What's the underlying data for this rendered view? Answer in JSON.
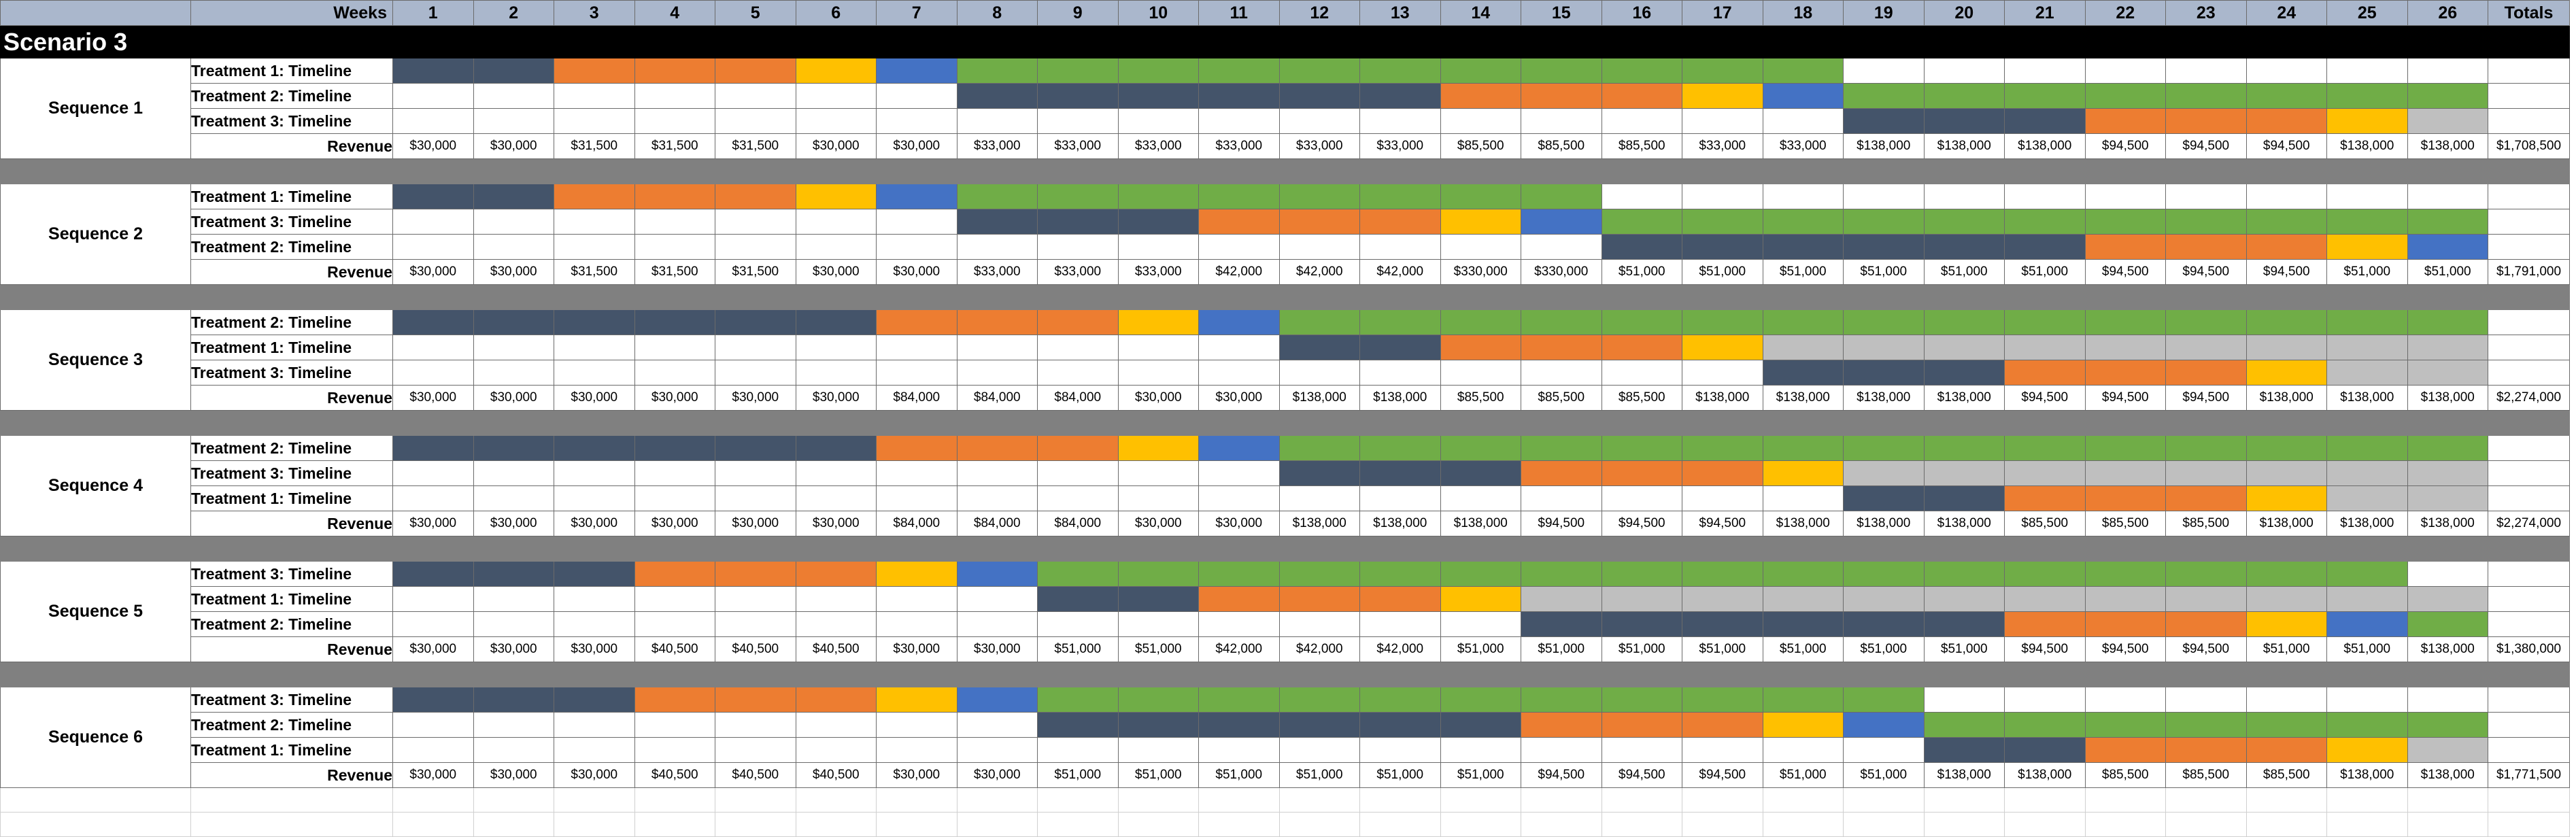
{
  "colors": {
    "N": "#44546a",
    "O": "#ed7d31",
    "Y": "#ffc000",
    "B": "#4472c4",
    "G": "#70ad47",
    "S": "#bfbfbf",
    "W": "#ffffff",
    "header_bg": "#aab7cc",
    "separator": "#808080"
  },
  "header": {
    "weeks_label": "Weeks",
    "weeks": [
      "1",
      "2",
      "3",
      "4",
      "5",
      "6",
      "7",
      "8",
      "9",
      "10",
      "11",
      "12",
      "13",
      "14",
      "15",
      "16",
      "17",
      "18",
      "19",
      "20",
      "21",
      "22",
      "23",
      "24",
      "25",
      "26"
    ],
    "totals_label": "Totals"
  },
  "scenario_title": "Scenario 3",
  "sequences": [
    {
      "label": "Sequence 1",
      "timelines": [
        {
          "label": "Treatment 1: Timeline",
          "cells": "NNOOOYBGGGGGGGGGGGWWWWWWWW"
        },
        {
          "label": "Treatment 2: Timeline",
          "cells": "WWWWWWWNNNNNNOOOYBGGGGGGGG"
        },
        {
          "label": "Treatment 3: Timeline",
          "cells": "WWWWWWWWWWWWWWWWWWNNNOOOYS"
        }
      ],
      "revenue_label": "Revenue",
      "revenue": [
        "$30,000",
        "$30,000",
        "$31,500",
        "$31,500",
        "$31,500",
        "$30,000",
        "$30,000",
        "$33,000",
        "$33,000",
        "$33,000",
        "$33,000",
        "$33,000",
        "$33,000",
        "$85,500",
        "$85,500",
        "$85,500",
        "$33,000",
        "$33,000",
        "$138,000",
        "$138,000",
        "$138,000",
        "$94,500",
        "$94,500",
        "$94,500",
        "$138,000",
        "$138,000"
      ],
      "total": "$1,708,500"
    },
    {
      "label": "Sequence 2",
      "timelines": [
        {
          "label": "Treatment 1: Timeline",
          "cells": "NNOOOYBGGGGGGGGWWWWWWWWWWW"
        },
        {
          "label": "Treatment 3: Timeline",
          "cells": "WWWWWWWNNNOOOYBGGGGGGGGGGG"
        },
        {
          "label": "Treatment 2: Timeline",
          "cells": "WWWWWWWWWWWWWWWNNNNNNOOOYB"
        }
      ],
      "revenue_label": "Revenue",
      "revenue": [
        "$30,000",
        "$30,000",
        "$31,500",
        "$31,500",
        "$31,500",
        "$30,000",
        "$30,000",
        "$33,000",
        "$33,000",
        "$33,000",
        "$42,000",
        "$42,000",
        "$42,000",
        "$330,000",
        "$330,000",
        "$51,000",
        "$51,000",
        "$51,000",
        "$51,000",
        "$51,000",
        "$51,000",
        "$94,500",
        "$94,500",
        "$94,500",
        "$51,000",
        "$51,000"
      ],
      "total": "$1,791,000"
    },
    {
      "label": "Sequence 3",
      "timelines": [
        {
          "label": "Treatment 2: Timeline",
          "cells": "NNNNNNOOOYBGGGGGGGGGGGGGGG"
        },
        {
          "label": "Treatment 1: Timeline",
          "cells": "WWWWWWWWWWWNNOOOYSSSSSSSSS"
        },
        {
          "label": "Treatment 3: Timeline",
          "cells": "WWWWWWWWWWWWWWWWWNNNOOOYSS"
        }
      ],
      "revenue_label": "Revenue",
      "revenue": [
        "$30,000",
        "$30,000",
        "$30,000",
        "$30,000",
        "$30,000",
        "$30,000",
        "$84,000",
        "$84,000",
        "$84,000",
        "$30,000",
        "$30,000",
        "$138,000",
        "$138,000",
        "$85,500",
        "$85,500",
        "$85,500",
        "$138,000",
        "$138,000",
        "$138,000",
        "$138,000",
        "$94,500",
        "$94,500",
        "$94,500",
        "$138,000",
        "$138,000",
        "$138,000"
      ],
      "total": "$2,274,000"
    },
    {
      "label": "Sequence 4",
      "timelines": [
        {
          "label": "Treatment 2: Timeline",
          "cells": "NNNNNNOOOYBGGGGGGGGGGGGGGG"
        },
        {
          "label": "Treatment 3: Timeline",
          "cells": "WWWWWWWWWWWNNNOOOYSSSSSSSS"
        },
        {
          "label": "Treatment 1: Timeline",
          "cells": "WWWWWWWWWWWWWWWWWWNNOOOYSS"
        }
      ],
      "revenue_label": "Revenue",
      "revenue": [
        "$30,000",
        "$30,000",
        "$30,000",
        "$30,000",
        "$30,000",
        "$30,000",
        "$84,000",
        "$84,000",
        "$84,000",
        "$30,000",
        "$30,000",
        "$138,000",
        "$138,000",
        "$138,000",
        "$94,500",
        "$94,500",
        "$94,500",
        "$138,000",
        "$138,000",
        "$138,000",
        "$85,500",
        "$85,500",
        "$85,500",
        "$138,000",
        "$138,000",
        "$138,000"
      ],
      "total": "$2,274,000"
    },
    {
      "label": "Sequence 5",
      "timelines": [
        {
          "label": "Treatment 3: Timeline",
          "cells": "NNNOOOYBGGGGGGGGGGGGGGGGGW"
        },
        {
          "label": "Treatment 1: Timeline",
          "cells": "WWWWWWWWNNOOOYSSSSSSSSSSSS"
        },
        {
          "label": "Treatment 2: Timeline",
          "cells": "WWWWWWWWWWWWWWNNNNNNOOOYBG"
        }
      ],
      "revenue_label": "Revenue",
      "revenue": [
        "$30,000",
        "$30,000",
        "$30,000",
        "$40,500",
        "$40,500",
        "$40,500",
        "$30,000",
        "$30,000",
        "$51,000",
        "$51,000",
        "$42,000",
        "$42,000",
        "$42,000",
        "$51,000",
        "$51,000",
        "$51,000",
        "$51,000",
        "$51,000",
        "$51,000",
        "$51,000",
        "$94,500",
        "$94,500",
        "$94,500",
        "$51,000",
        "$51,000",
        "$138,000"
      ],
      "total": "$1,380,000"
    },
    {
      "label": "Sequence 6",
      "timelines": [
        {
          "label": "Treatment 3: Timeline",
          "cells": "NNNOOOYBGGGGGGGGGGGWWWWWWW"
        },
        {
          "label": "Treatment 2: Timeline",
          "cells": "WWWWWWWWNNNNNNOOOYBGGGGGGG"
        },
        {
          "label": "Treatment 1: Timeline",
          "cells": "WWWWWWWWWWWWWWWWWWWNNOOOYS"
        }
      ],
      "revenue_label": "Revenue",
      "revenue": [
        "$30,000",
        "$30,000",
        "$30,000",
        "$40,500",
        "$40,500",
        "$40,500",
        "$30,000",
        "$30,000",
        "$51,000",
        "$51,000",
        "$51,000",
        "$51,000",
        "$51,000",
        "$51,000",
        "$94,500",
        "$94,500",
        "$94,500",
        "$51,000",
        "$51,000",
        "$138,000",
        "$138,000",
        "$85,500",
        "$85,500",
        "$85,500",
        "$138,000",
        "$138,000"
      ],
      "total": "$1,771,500"
    }
  ]
}
